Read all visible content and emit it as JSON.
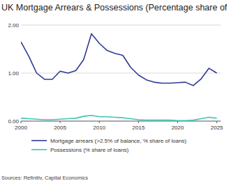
{
  "chart_data": {
    "type": "line",
    "title": "UK Mortgage Arrears & Possessions (Percentage share of loans)",
    "source": "Sources: Refinitiv, Capital Economics",
    "x": [
      2000,
      2001,
      2002,
      2003,
      2004,
      2005,
      2006,
      2007,
      2008,
      2009,
      2010,
      2011,
      2012,
      2013,
      2014,
      2015,
      2016,
      2017,
      2018,
      2019,
      2020,
      2021,
      2022,
      2023,
      2024,
      2025
    ],
    "series": [
      {
        "name": "Mortgage arrears (>2.5% of balance, % share of loans)",
        "color": "#2e3a93",
        "values": [
          1.65,
          1.35,
          1.0,
          0.87,
          0.87,
          1.04,
          1.0,
          1.05,
          1.28,
          1.82,
          1.62,
          1.47,
          1.41,
          1.37,
          1.12,
          0.96,
          0.86,
          0.81,
          0.79,
          0.79,
          0.8,
          0.81,
          0.74,
          0.88,
          1.1,
          1.0
        ]
      },
      {
        "name": "Possessions (% share of loans)",
        "color": "#3cc6b5",
        "values": [
          0.06,
          0.05,
          0.04,
          0.03,
          0.03,
          0.04,
          0.05,
          0.06,
          0.1,
          0.12,
          0.09,
          0.09,
          0.08,
          0.07,
          0.05,
          0.03,
          0.02,
          0.02,
          0.02,
          0.02,
          0.01,
          0.01,
          0.02,
          0.05,
          0.08,
          0.06
        ]
      }
    ],
    "xlim": [
      2000,
      2025.5
    ],
    "xticks": [
      2000,
      2005,
      2010,
      2015,
      2020,
      2025
    ],
    "ylim": [
      0,
      2
    ],
    "yticks": [
      {
        "value": 0,
        "label": "0.00"
      },
      {
        "value": 1,
        "label": "1.00"
      },
      {
        "value": 2,
        "label": "2.00"
      }
    ],
    "grid": true,
    "legend": "bottom"
  }
}
